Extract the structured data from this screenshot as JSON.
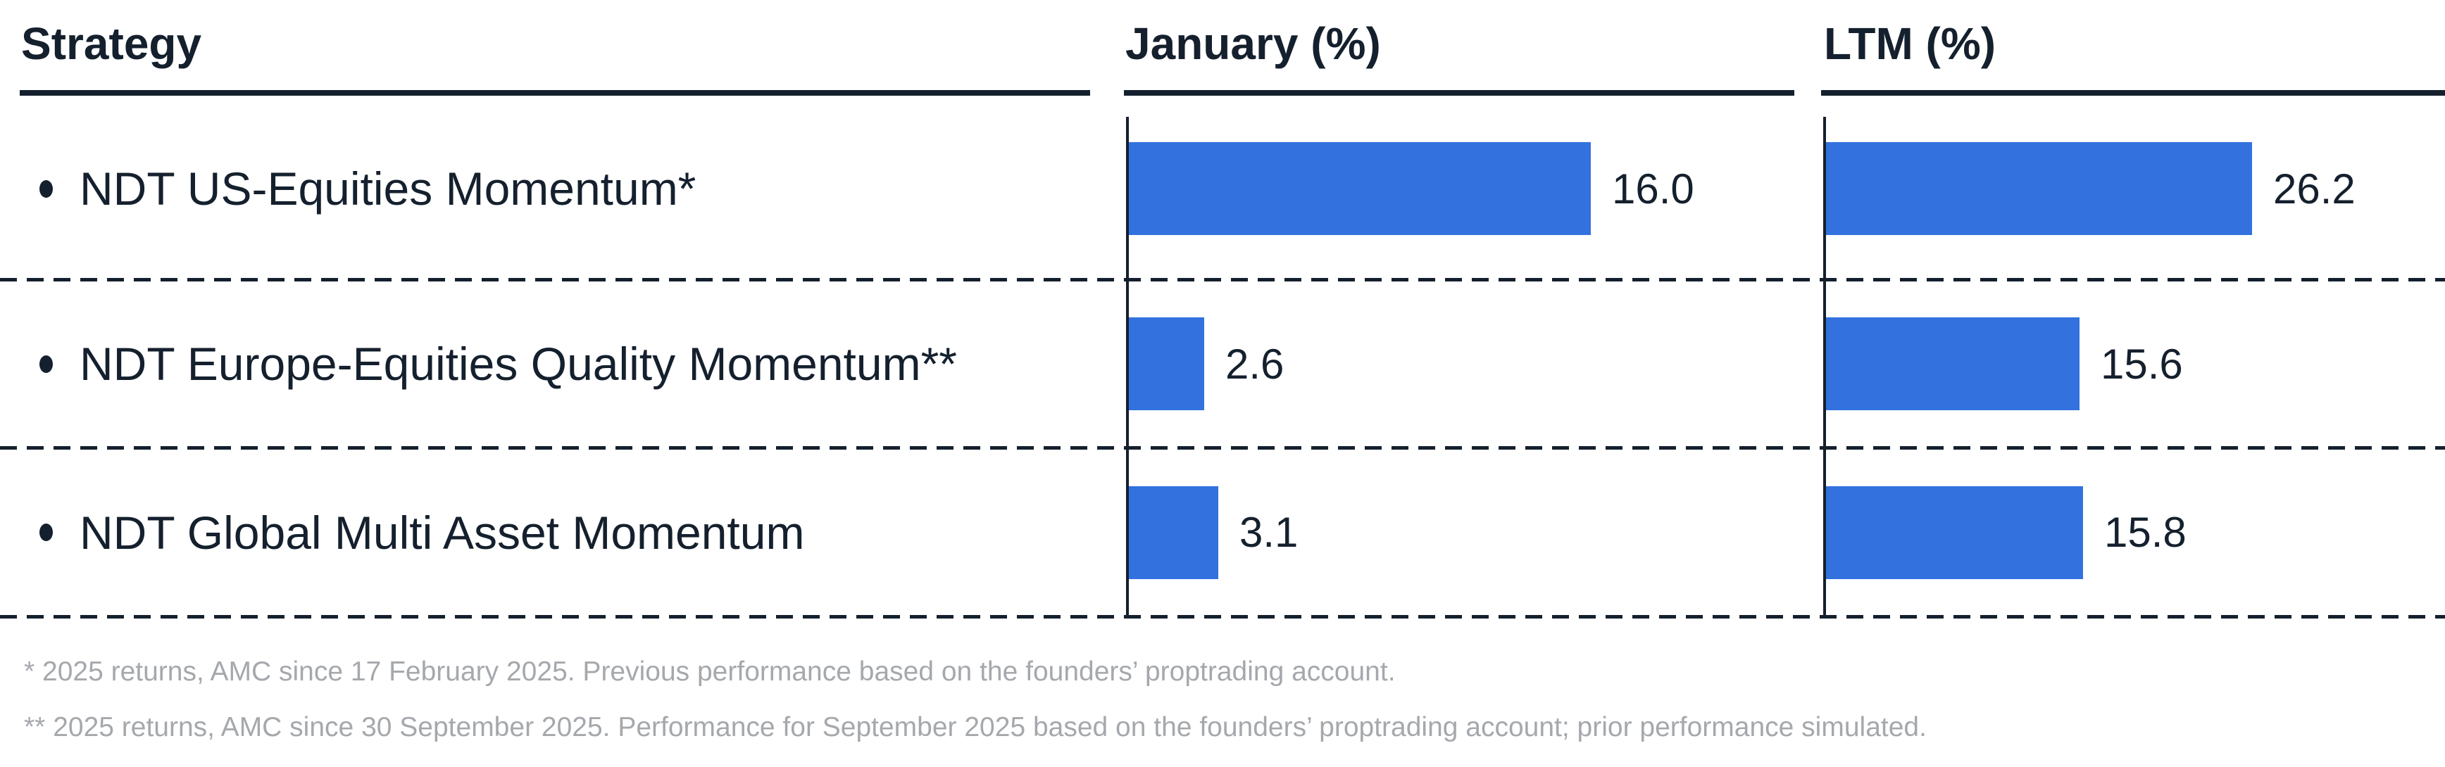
{
  "header": {
    "strategy": "Strategy",
    "january": "January (%)",
    "ltm": "LTM (%)"
  },
  "rows": [
    {
      "strategy": "NDT US-Equities Momentum*",
      "january": "16.0",
      "ltm": "26.2"
    },
    {
      "strategy": "NDT Europe-Equities Quality Momentum**",
      "january": "2.6",
      "ltm": "15.6"
    },
    {
      "strategy": "NDT Global Multi Asset Momentum",
      "january": "3.1",
      "ltm": "15.8"
    }
  ],
  "footnotes": [
    "* 2025 returns, AMC since 17 February 2025. Previous performance based on the founders’ proptrading account.",
    "** 2025 returns, AMC since 30 September 2025. Performance for September 2025 based on the founders’ proptrading account; prior performance simulated."
  ],
  "icons": {
    "bullet": "•"
  },
  "colors": {
    "bar_blue": "#3271de",
    "text_dark": "#15202e",
    "footnote_gray": "#a5a8ac"
  },
  "chart_data": {
    "type": "bar",
    "orientation": "horizontal",
    "title": "",
    "categories": [
      "NDT US-Equities Momentum*",
      "NDT Europe-Equities Quality Momentum**",
      "NDT Global Multi Asset Momentum"
    ],
    "series": [
      {
        "name": "January (%)",
        "values": [
          16.0,
          2.6,
          3.1
        ]
      },
      {
        "name": "LTM (%)",
        "values": [
          26.2,
          15.6,
          15.8
        ]
      }
    ],
    "data_labels": {
      "january": [
        "16.0",
        "2.6",
        "3.1"
      ],
      "ltm": [
        "26.2",
        "15.6",
        "15.8"
      ]
    },
    "axis_max": {
      "january": 23.2,
      "ltm": 38.3
    },
    "grid": false,
    "legend": "none",
    "bar_color": "#3271de"
  }
}
